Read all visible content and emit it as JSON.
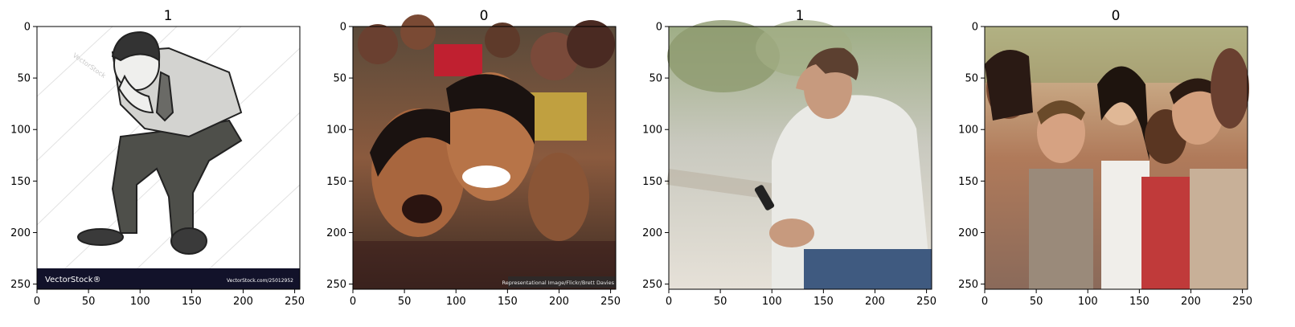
{
  "figure": {
    "panels": [
      {
        "title": "1",
        "watermark": "VectorStock",
        "footer_left": "VectorStock®",
        "footer_right": "VectorStock.com/25012952",
        "scene": "illustration of a sad man sitting with hand on head"
      },
      {
        "title": "0",
        "caption": "Representational Image/Flickr/Brett Davies",
        "scene": "photo of smiling girls"
      },
      {
        "title": "1",
        "scene": "photo of a man holding a phone with hand on head"
      },
      {
        "title": "0",
        "scene": "photo of a group of laughing friends"
      }
    ],
    "axes": {
      "x_ticks": [
        "0",
        "50",
        "100",
        "150",
        "200",
        "250"
      ],
      "y_ticks": [
        "0",
        "50",
        "100",
        "150",
        "200",
        "250"
      ],
      "x_range": [
        0,
        255
      ],
      "y_range": [
        255,
        0
      ]
    }
  }
}
